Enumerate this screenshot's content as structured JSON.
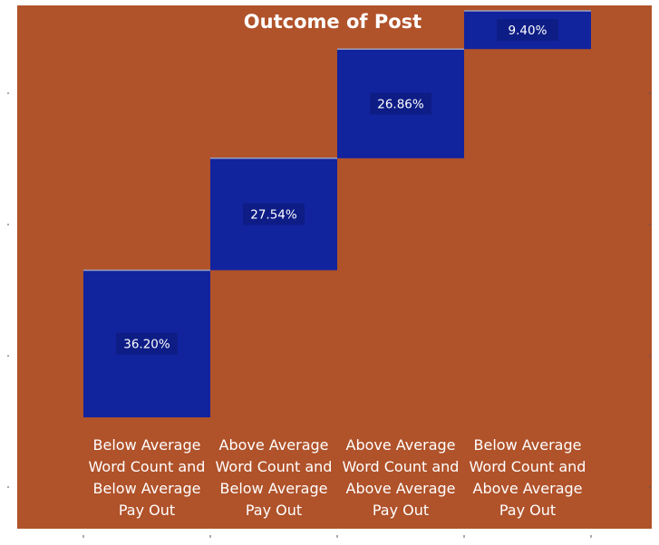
{
  "colors": {
    "background": "#B0522A",
    "bar": "#12239E",
    "label_bg": "#0E1D86",
    "connector": "#9AA0C0"
  },
  "chart_data": {
    "type": "bar",
    "subtype": "waterfall",
    "title": "Outcome of Post",
    "categories": [
      [
        "Below Average",
        "Word Count and",
        "Below Average",
        "Pay Out"
      ],
      [
        "Above Average",
        "Word Count and",
        "Below Average",
        "Pay Out"
      ],
      [
        "Above Average",
        "Word Count and",
        "Above Average",
        "Pay Out"
      ],
      [
        "Below Average",
        "Word Count and",
        "Above Average",
        "Pay Out"
      ]
    ],
    "values": [
      36.2,
      27.54,
      26.86,
      9.4
    ],
    "data_labels": [
      "36.20%",
      "27.54%",
      "26.86%",
      "9.40%"
    ],
    "ylim": [
      0,
      100
    ],
    "grid": false,
    "legend": "none"
  }
}
